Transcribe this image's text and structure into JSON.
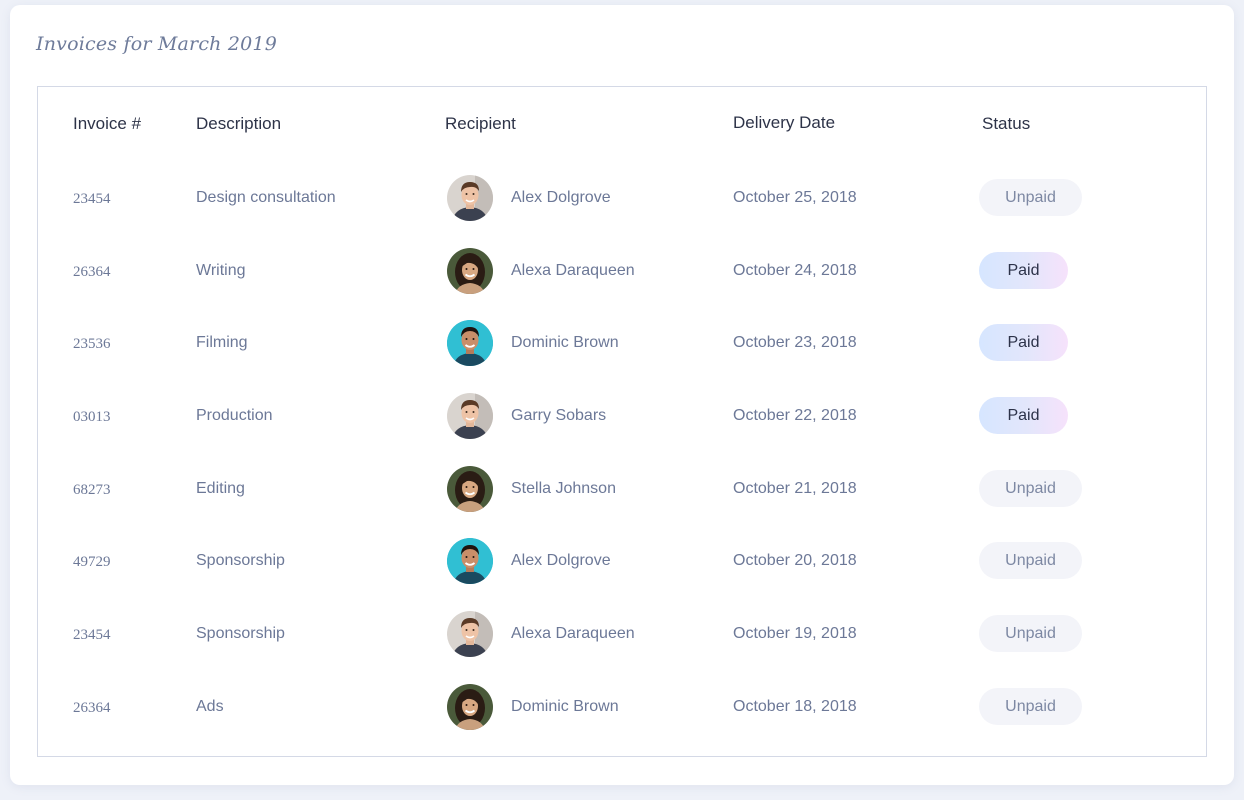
{
  "title": "Invoices for March 2019",
  "columns": {
    "invoice": "Invoice #",
    "description": "Description",
    "recipient": "Recipient",
    "delivery_date": "Delivery Date",
    "status": "Status"
  },
  "colors": {
    "title": "#6e7b9a",
    "header_text": "#2d3348",
    "body_text": "#6c7897",
    "paid_gradient_start": "#d6e6ff",
    "paid_gradient_end": "#f6e2fb",
    "unpaid_bg": "#f3f4f9",
    "frame_border": "#d4d9e6"
  },
  "rows": [
    {
      "invoice": "23454",
      "description": "Design consultation",
      "recipient": "Alex Dolgrove",
      "avatar": "avatar-man-light",
      "date": "October 25, 2018",
      "status": "Unpaid"
    },
    {
      "invoice": "26364",
      "description": "Writing",
      "recipient": "Alexa Daraqueen",
      "avatar": "avatar-woman",
      "date": "October 24, 2018",
      "status": "Paid"
    },
    {
      "invoice": "23536",
      "description": "Filming",
      "recipient": "Dominic Brown",
      "avatar": "avatar-man-teal",
      "date": "October 23, 2018",
      "status": "Paid"
    },
    {
      "invoice": "03013",
      "description": "Production",
      "recipient": "Garry Sobars",
      "avatar": "avatar-man-light",
      "date": "October 22, 2018",
      "status": "Paid"
    },
    {
      "invoice": "68273",
      "description": "Editing",
      "recipient": "Stella Johnson",
      "avatar": "avatar-woman",
      "date": "October 21, 2018",
      "status": "Unpaid"
    },
    {
      "invoice": "49729",
      "description": "Sponsorship",
      "recipient": "Alex Dolgrove",
      "avatar": "avatar-man-teal",
      "date": "October 20, 2018",
      "status": "Unpaid"
    },
    {
      "invoice": "23454",
      "description": "Sponsorship",
      "recipient": "Alexa Daraqueen",
      "avatar": "avatar-man-light",
      "date": "October 19, 2018",
      "status": "Unpaid"
    },
    {
      "invoice": "26364",
      "description": "Ads",
      "recipient": "Dominic Brown",
      "avatar": "avatar-woman",
      "date": "October 18, 2018",
      "status": "Unpaid"
    }
  ]
}
